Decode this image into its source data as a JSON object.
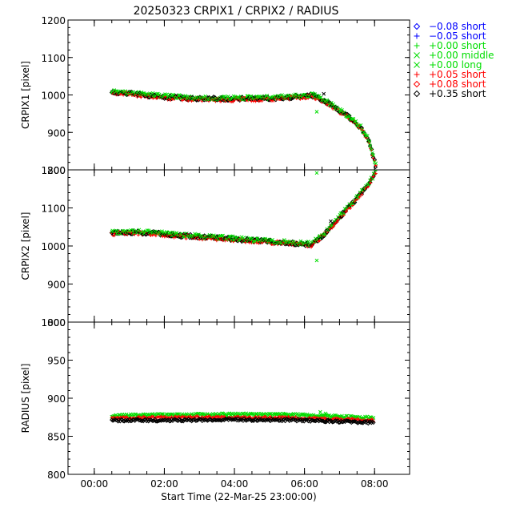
{
  "title": "20250323 CRPIX1 / CRPIX2 / RADIUS",
  "colors": {
    "blue": "#0000ff",
    "green": "#00dd00",
    "red": "#ff0000",
    "black": "#000000"
  },
  "legend": {
    "placement": "right",
    "entries": [
      {
        "symbol": "diamond",
        "label": "−0.08 short",
        "color": "#0000ff"
      },
      {
        "symbol": "plus",
        "label": "−0.05 short",
        "color": "#0000ff"
      },
      {
        "symbol": "plus",
        "label": "+0.00 short",
        "color": "#00dd00"
      },
      {
        "symbol": "cross",
        "label": "+0.00 middle",
        "color": "#00dd00"
      },
      {
        "symbol": "cross",
        "label": "+0.00 long",
        "color": "#00dd00"
      },
      {
        "symbol": "plus",
        "label": "+0.05 short",
        "color": "#ff0000"
      },
      {
        "symbol": "diamond",
        "label": "+0.08 short",
        "color": "#ff0000"
      },
      {
        "symbol": "diamond",
        "label": "+0.35 short",
        "color": "#000000"
      }
    ]
  },
  "chart_data": [
    {
      "type": "scatter",
      "ylabel": "CRPIX1 [pixel]",
      "ylim": [
        800,
        1200
      ],
      "yticks": [
        800,
        900,
        1000,
        1100,
        1200
      ],
      "xlim": [
        -0.75,
        9.0
      ],
      "xticks": [
        0,
        2,
        4,
        6,
        8
      ],
      "trend": [
        [
          0.5,
          1008
        ],
        [
          1.0,
          1004
        ],
        [
          1.5,
          999
        ],
        [
          2.0,
          995
        ],
        [
          2.5,
          992
        ],
        [
          3.0,
          990
        ],
        [
          3.5,
          990
        ],
        [
          4.0,
          989
        ],
        [
          4.5,
          990
        ],
        [
          5.0,
          991
        ],
        [
          5.5,
          993
        ],
        [
          6.0,
          997
        ],
        [
          6.2,
          999
        ],
        [
          6.4,
          992
        ],
        [
          6.6,
          982
        ],
        [
          6.8,
          970
        ],
        [
          7.0,
          958
        ],
        [
          7.2,
          946
        ],
        [
          7.4,
          932
        ],
        [
          7.6,
          913
        ],
        [
          7.8,
          885
        ],
        [
          7.95,
          842
        ],
        [
          8.05,
          805
        ]
      ],
      "outliers": [
        {
          "x": 6.35,
          "y": 955,
          "color": "#00dd00"
        },
        {
          "x": 6.55,
          "y": 1003,
          "color": "#000000"
        },
        {
          "x": 6.3,
          "y": 1002,
          "color": "#00dd00"
        }
      ]
    },
    {
      "type": "scatter",
      "ylabel": "CRPIX2 [pixel]",
      "ylim": [
        800,
        1200
      ],
      "yticks": [
        800,
        900,
        1000,
        1100,
        1200
      ],
      "xlim": [
        -0.75,
        9.0
      ],
      "xticks": [
        0,
        2,
        4,
        6,
        8
      ],
      "trend": [
        [
          0.5,
          1034
        ],
        [
          1.0,
          1036
        ],
        [
          1.5,
          1035
        ],
        [
          2.0,
          1031
        ],
        [
          2.5,
          1027
        ],
        [
          3.0,
          1024
        ],
        [
          3.5,
          1021
        ],
        [
          4.0,
          1018
        ],
        [
          4.5,
          1015
        ],
        [
          5.0,
          1012
        ],
        [
          5.5,
          1009
        ],
        [
          6.0,
          1005
        ],
        [
          6.2,
          1004
        ],
        [
          6.4,
          1018
        ],
        [
          6.6,
          1035
        ],
        [
          6.8,
          1055
        ],
        [
          7.0,
          1075
        ],
        [
          7.2,
          1095
        ],
        [
          7.4,
          1115
        ],
        [
          7.6,
          1137
        ],
        [
          7.8,
          1160
        ],
        [
          7.95,
          1180
        ],
        [
          8.05,
          1200
        ]
      ],
      "outliers": [
        {
          "x": 6.35,
          "y": 1192,
          "color": "#00dd00"
        },
        {
          "x": 6.35,
          "y": 962,
          "color": "#00dd00"
        },
        {
          "x": 6.75,
          "y": 1065,
          "color": "#000000"
        }
      ]
    },
    {
      "type": "scatter",
      "ylabel": "RADIUS [pixel]",
      "ylim": [
        800,
        1000
      ],
      "yticks": [
        800,
        850,
        900,
        950,
        1000
      ],
      "xlim": [
        -0.75,
        9.0
      ],
      "xticks": [
        0,
        2,
        4,
        6,
        8
      ],
      "xticklabels": [
        "00:00",
        "02:00",
        "04:00",
        "06:00",
        "08:00"
      ],
      "xlabel": "Start Time (22-Mar-25 23:00:00)",
      "series": [
        {
          "color": "#00dd00",
          "trend": [
            [
              0.5,
              877
            ],
            [
              2.0,
              878
            ],
            [
              4.0,
              879
            ],
            [
              6.0,
              878
            ],
            [
              8.0,
              874
            ]
          ]
        },
        {
          "color": "#ff0000",
          "trend": [
            [
              0.5,
              874
            ],
            [
              2.0,
              875
            ],
            [
              4.0,
              875
            ],
            [
              6.0,
              874
            ],
            [
              8.0,
              871
            ]
          ]
        },
        {
          "color": "#000000",
          "trend": [
            [
              0.5,
              871
            ],
            [
              2.0,
              871
            ],
            [
              4.0,
              872
            ],
            [
              6.0,
              871
            ],
            [
              8.0,
              868
            ]
          ]
        }
      ],
      "outliers": [
        {
          "x": 6.45,
          "y": 882,
          "color": "#00dd00"
        },
        {
          "x": 6.6,
          "y": 880,
          "color": "#00dd00"
        }
      ]
    }
  ]
}
